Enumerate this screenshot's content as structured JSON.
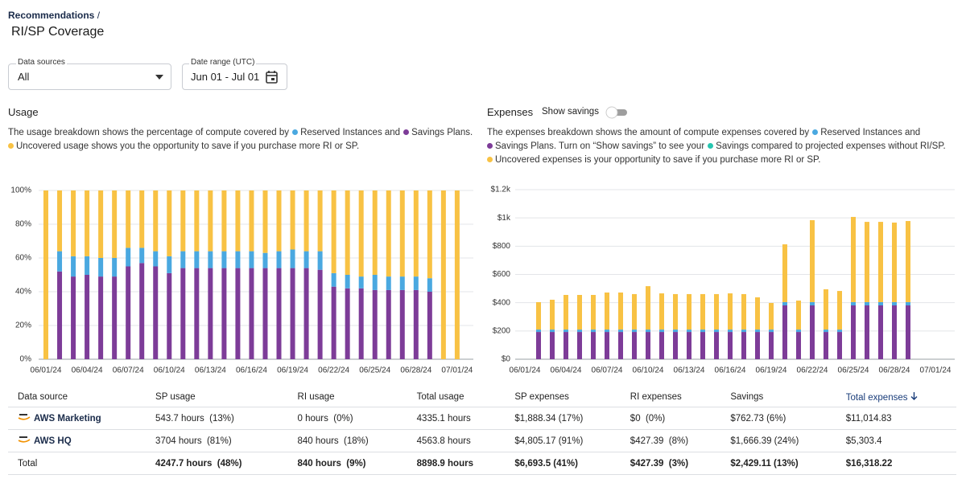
{
  "header": {
    "breadcrumb": "Recommendations",
    "separator": "/",
    "title": "RI/SP Coverage"
  },
  "filters": {
    "data_sources": {
      "label": "Data sources",
      "value": "All"
    },
    "date_range": {
      "label": "Date range (UTC)",
      "value": "Jun 01 - Jul 01"
    }
  },
  "usage": {
    "title": "Usage",
    "description": [
      "The usage breakdown shows the percentage of compute covered by",
      "Reserved Instances and",
      "Savings Plans.",
      "Uncovered usage shows you the opportunity to save if you purchase more RI or SP."
    ]
  },
  "expenses": {
    "title": "Expenses",
    "toggle": "Show savings",
    "description": [
      "The expenses breakdown shows the amount of compute expenses covered by",
      "Reserved Instances and",
      "Savings Plans. Turn on “Show savings” to see your",
      "Savings compared to projected expenses without RI/SP.",
      "Uncovered expenses is your opportunity to save if you purchase more RI or SP."
    ]
  },
  "chart_data": [
    {
      "type": "stacked_bar",
      "categories": [
        "06/01/24",
        null,
        null,
        "06/04/24",
        null,
        null,
        "06/07/24",
        null,
        null,
        "06/10/24",
        null,
        null,
        "06/13/24",
        null,
        null,
        "06/16/24",
        null,
        null,
        "06/19/24",
        null,
        null,
        "06/22/24",
        null,
        null,
        "06/25/24",
        null,
        null,
        "06/28/24",
        null,
        null,
        "07/01/24"
      ],
      "series": [
        {
          "color": "#7d3c98",
          "values": [
            0,
            52,
            49,
            50,
            49,
            49,
            55,
            57,
            55,
            51,
            54,
            54,
            54,
            54,
            54,
            54,
            54,
            54,
            54,
            54,
            53,
            43,
            42,
            42,
            41,
            41,
            41,
            41,
            40,
            0,
            0
          ]
        },
        {
          "color": "#4aa8e0",
          "values": [
            0,
            12,
            12,
            11,
            11,
            11,
            11,
            9,
            9,
            10,
            10,
            10,
            10,
            10,
            10,
            10,
            9,
            10,
            11,
            10,
            11,
            8,
            8,
            7,
            9,
            8,
            8,
            8,
            8,
            0,
            0
          ]
        },
        {
          "color": "#f8c244",
          "values": [
            100,
            36,
            39,
            39,
            40,
            40,
            34,
            34,
            36,
            39,
            36,
            36,
            36,
            36,
            36,
            36,
            37,
            36,
            35,
            36,
            36,
            49,
            50,
            51,
            50,
            51,
            51,
            51,
            52,
            100,
            100
          ]
        }
      ],
      "ylim": [
        0,
        100
      ],
      "yticks": [
        {
          "value": 0,
          "label": "0%"
        },
        {
          "value": 20,
          "label": "20%"
        },
        {
          "value": 40,
          "label": "40%"
        },
        {
          "value": 60,
          "label": "60%"
        },
        {
          "value": 80,
          "label": "80%"
        },
        {
          "value": 100,
          "label": "100%"
        }
      ],
      "grid": true
    },
    {
      "type": "stacked_bar",
      "categories": [
        "06/01/24",
        null,
        null,
        "06/04/24",
        null,
        null,
        "06/07/24",
        null,
        null,
        "06/10/24",
        null,
        null,
        "06/13/24",
        null,
        null,
        "06/16/24",
        null,
        null,
        "06/19/24",
        null,
        null,
        "06/22/24",
        null,
        null,
        "06/25/24",
        null,
        null,
        "06/28/24",
        null,
        null,
        "07/01/24"
      ],
      "series": [
        {
          "color": "#7d3c98",
          "values": [
            0,
            193,
            193,
            193,
            193,
            193,
            193,
            193,
            193,
            193,
            193,
            193,
            193,
            193,
            193,
            193,
            193,
            193,
            193,
            381,
            193,
            381,
            193,
            193,
            381,
            381,
            381,
            381,
            381,
            0,
            0
          ]
        },
        {
          "color": "#4aa8e0",
          "values": [
            0,
            17,
            17,
            17,
            17,
            17,
            17,
            17,
            17,
            17,
            17,
            17,
            17,
            17,
            17,
            17,
            17,
            17,
            17,
            23,
            17,
            23,
            17,
            17,
            23,
            23,
            23,
            23,
            23,
            0,
            0
          ]
        },
        {
          "color": "#f8c244",
          "values": [
            0,
            194,
            211,
            245,
            245,
            245,
            262,
            262,
            251,
            307,
            256,
            251,
            251,
            251,
            251,
            256,
            251,
            228,
            188,
            409,
            205,
            580,
            285,
            273,
            603,
            568,
            568,
            563,
            574,
            0,
            0
          ]
        }
      ],
      "ylim": [
        0,
        1200
      ],
      "yticks": [
        {
          "value": 0,
          "label": "$0"
        },
        {
          "value": 200,
          "label": "$200"
        },
        {
          "value": 400,
          "label": "$400"
        },
        {
          "value": 600,
          "label": "$600"
        },
        {
          "value": 800,
          "label": "$800"
        },
        {
          "value": 1000,
          "label": "$1k"
        },
        {
          "value": 1200,
          "label": "$1.2k"
        }
      ],
      "grid": true
    }
  ],
  "table": {
    "header": [
      "Data source",
      "SP usage",
      "RI usage",
      "Total usage",
      "SP expenses",
      "RI expenses",
      "Savings",
      "Total expenses"
    ],
    "rows": [
      [
        "AWS Marketing",
        "543.7 hours  (13%)",
        "0 hours  (0%)",
        "4335.1 hours",
        "$1,888.34 (17%)",
        "$0  (0%)",
        "$762.73 (6%)",
        "$11,014.83"
      ],
      [
        "AWS HQ",
        "3704 hours  (81%)",
        "840 hours  (18%)",
        "4563.8 hours",
        "$4,805.17 (91%)",
        "$427.39  (8%)",
        "$1,666.39 (24%)",
        "$5,303.4"
      ],
      [
        "Total",
        "4247.7 hours  (48%)",
        "840 hours  (9%)",
        "8898.9 hours",
        "$6,693.5 (41%)",
        "$427.39  (3%)",
        "$2,429.11 (13%)",
        "$16,318.22"
      ]
    ]
  }
}
